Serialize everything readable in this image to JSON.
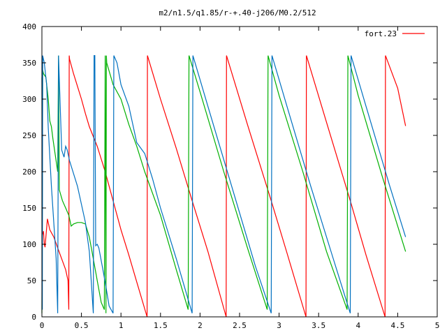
{
  "chart_data": {
    "type": "line",
    "title": "m2/n1.5/q1.85/r-+.40-j206/M0.2/512",
    "xlabel": "",
    "ylabel": "",
    "xlim": [
      0,
      5
    ],
    "ylim": [
      0,
      400
    ],
    "x_ticks": [
      0,
      0.5,
      1,
      1.5,
      2,
      2.5,
      3,
      3.5,
      4,
      4.5,
      5
    ],
    "x_tick_labels": [
      "0",
      "0.5",
      "1",
      "1.5",
      "2",
      "2.5",
      "3",
      "3.5",
      "4",
      "4.5",
      "5"
    ],
    "y_ticks": [
      0,
      50,
      100,
      150,
      200,
      250,
      300,
      350,
      400
    ],
    "y_tick_labels": [
      "0",
      "50",
      "100",
      "150",
      "200",
      "250",
      "300",
      "350",
      "400"
    ],
    "grid": false,
    "legend_position": "top-right",
    "legend_entries": [
      {
        "label": "fort.23",
        "color": "#ff0000"
      }
    ],
    "series": [
      {
        "name": "fort.23",
        "color": "#ff0000",
        "points": [
          [
            0.0,
            110
          ],
          [
            0.02,
            118
          ],
          [
            0.03,
            100
          ],
          [
            0.04,
            96
          ],
          [
            0.05,
            110
          ],
          [
            0.07,
            135
          ],
          [
            0.1,
            120
          ],
          [
            0.15,
            110
          ],
          [
            0.2,
            95
          ],
          [
            0.25,
            80
          ],
          [
            0.3,
            65
          ],
          [
            0.33,
            50
          ],
          [
            0.34,
            10
          ],
          [
            0.345,
            360
          ],
          [
            0.35,
            355
          ],
          [
            0.4,
            335
          ],
          [
            0.5,
            300
          ],
          [
            0.55,
            280
          ],
          [
            0.6,
            262
          ],
          [
            0.7,
            235
          ],
          [
            0.8,
            200
          ],
          [
            0.9,
            160
          ],
          [
            1.0,
            120
          ],
          [
            1.1,
            85
          ],
          [
            1.2,
            48
          ],
          [
            1.33,
            0
          ],
          [
            1.335,
            360
          ],
          [
            1.5,
            300
          ],
          [
            1.7,
            232
          ],
          [
            1.9,
            160
          ],
          [
            2.1,
            90
          ],
          [
            2.33,
            0
          ],
          [
            2.335,
            360
          ],
          [
            2.6,
            265
          ],
          [
            2.9,
            160
          ],
          [
            3.1,
            88
          ],
          [
            3.34,
            0
          ],
          [
            3.345,
            360
          ],
          [
            3.6,
            268
          ],
          [
            3.9,
            160
          ],
          [
            4.1,
            85
          ],
          [
            4.34,
            0
          ],
          [
            4.345,
            360
          ],
          [
            4.5,
            315
          ],
          [
            4.6,
            263
          ]
        ]
      },
      {
        "name": "",
        "color": "#00b000",
        "points": [
          [
            0.0,
            5
          ],
          [
            0.01,
            340
          ],
          [
            0.02,
            335
          ],
          [
            0.05,
            330
          ],
          [
            0.08,
            300
          ],
          [
            0.1,
            270
          ],
          [
            0.12,
            262
          ],
          [
            0.14,
            245
          ],
          [
            0.2,
            200
          ],
          [
            0.21,
            360
          ],
          [
            0.22,
            175
          ],
          [
            0.26,
            160
          ],
          [
            0.3,
            150
          ],
          [
            0.34,
            140
          ],
          [
            0.37,
            125
          ],
          [
            0.4,
            128
          ],
          [
            0.45,
            130
          ],
          [
            0.5,
            130
          ],
          [
            0.55,
            128
          ],
          [
            0.6,
            110
          ],
          [
            0.65,
            80
          ],
          [
            0.7,
            50
          ],
          [
            0.75,
            20
          ],
          [
            0.79,
            10
          ],
          [
            0.8,
            360
          ],
          [
            0.81,
            5
          ],
          [
            0.815,
            360
          ],
          [
            0.82,
            350
          ],
          [
            0.9,
            320
          ],
          [
            1.0,
            300
          ],
          [
            1.1,
            265
          ],
          [
            1.2,
            235
          ],
          [
            1.3,
            200
          ],
          [
            1.5,
            140
          ],
          [
            1.7,
            65
          ],
          [
            1.85,
            10
          ],
          [
            1.86,
            360
          ],
          [
            2.0,
            310
          ],
          [
            2.3,
            200
          ],
          [
            2.6,
            95
          ],
          [
            2.85,
            10
          ],
          [
            2.86,
            360
          ],
          [
            3.0,
            305
          ],
          [
            3.3,
            200
          ],
          [
            3.6,
            90
          ],
          [
            3.86,
            10
          ],
          [
            3.87,
            360
          ],
          [
            4.0,
            305
          ],
          [
            4.3,
            195
          ],
          [
            4.6,
            90
          ]
        ]
      },
      {
        "name": "",
        "color": "#0070c0",
        "points": [
          [
            0.0,
            330
          ],
          [
            0.005,
            10
          ],
          [
            0.01,
            360
          ],
          [
            0.03,
            350
          ],
          [
            0.06,
            320
          ],
          [
            0.08,
            260
          ],
          [
            0.12,
            180
          ],
          [
            0.15,
            130
          ],
          [
            0.18,
            80
          ],
          [
            0.2,
            5
          ],
          [
            0.21,
            360
          ],
          [
            0.25,
            230
          ],
          [
            0.28,
            220
          ],
          [
            0.3,
            235
          ],
          [
            0.32,
            230
          ],
          [
            0.35,
            215
          ],
          [
            0.45,
            180
          ],
          [
            0.55,
            130
          ],
          [
            0.6,
            90
          ],
          [
            0.65,
            5
          ],
          [
            0.66,
            360
          ],
          [
            0.67,
            360
          ],
          [
            0.68,
            98
          ],
          [
            0.7,
            100
          ],
          [
            0.72,
            95
          ],
          [
            0.78,
            60
          ],
          [
            0.82,
            35
          ],
          [
            0.85,
            15
          ],
          [
            0.9,
            5
          ],
          [
            0.91,
            360
          ],
          [
            0.95,
            350
          ],
          [
            1.0,
            320
          ],
          [
            1.1,
            290
          ],
          [
            1.2,
            240
          ],
          [
            1.3,
            225
          ],
          [
            1.4,
            190
          ],
          [
            1.5,
            150
          ],
          [
            1.7,
            80
          ],
          [
            1.9,
            5
          ],
          [
            1.91,
            360
          ],
          [
            2.1,
            290
          ],
          [
            2.4,
            180
          ],
          [
            2.7,
            70
          ],
          [
            2.9,
            5
          ],
          [
            2.91,
            360
          ],
          [
            3.1,
            290
          ],
          [
            3.4,
            180
          ],
          [
            3.7,
            75
          ],
          [
            3.9,
            5
          ],
          [
            3.91,
            360
          ],
          [
            4.1,
            290
          ],
          [
            4.4,
            180
          ],
          [
            4.6,
            110
          ]
        ]
      }
    ]
  }
}
